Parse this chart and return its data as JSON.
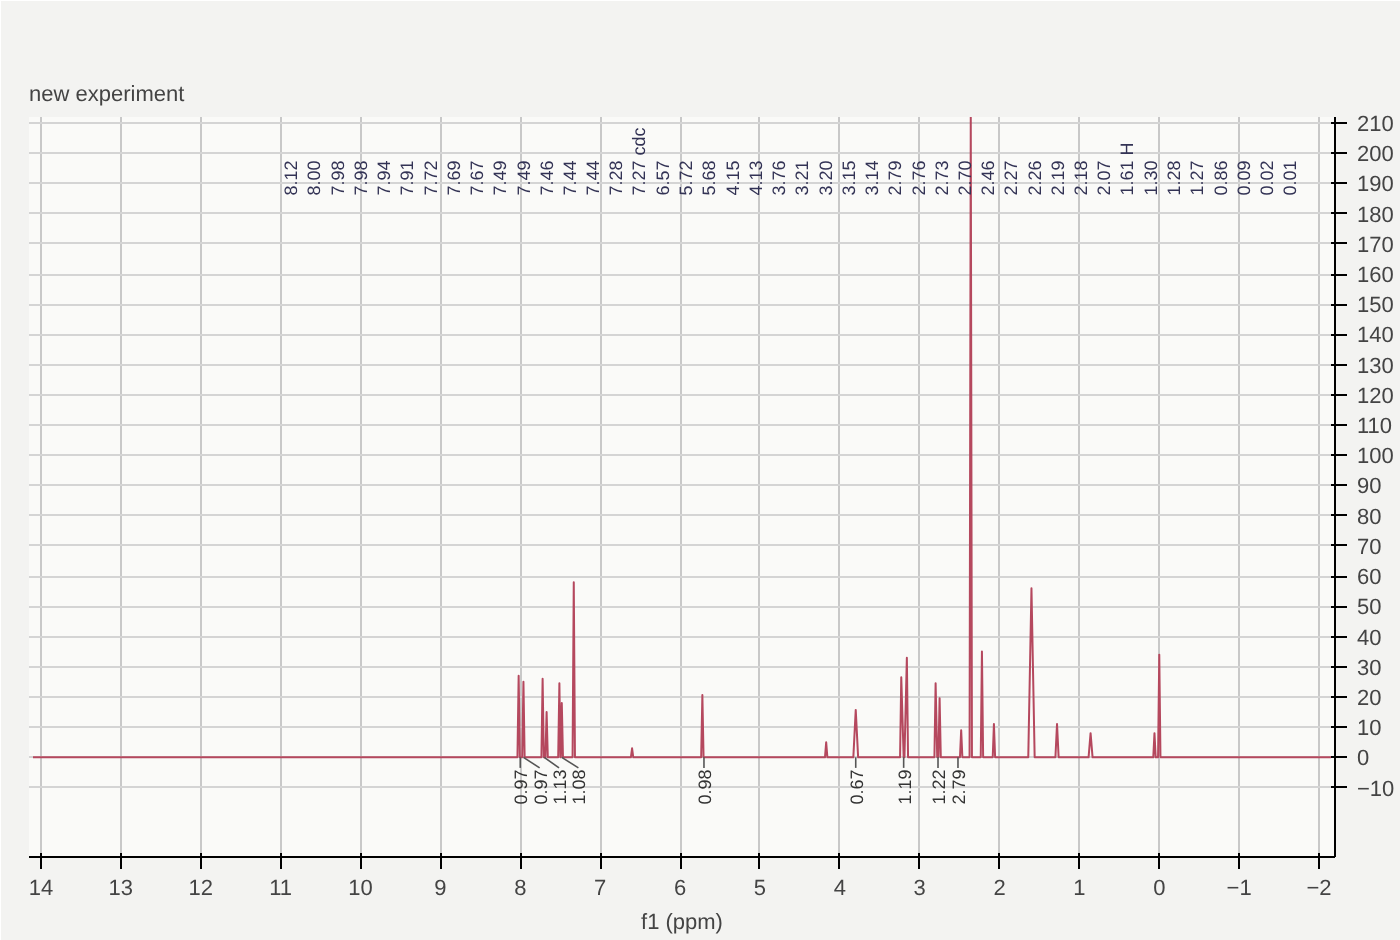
{
  "chart_data": {
    "type": "line",
    "title": "new experiment",
    "xlabel": "f1 (ppm)",
    "xlim": [
      14.15,
      -2.2
    ],
    "xticks": [
      14,
      13,
      12,
      11,
      10,
      9,
      8,
      7,
      6,
      5,
      4,
      3,
      2,
      1,
      0,
      -1,
      -2
    ],
    "ylim": [
      -33,
      212
    ],
    "yticks": [
      -10,
      0,
      10,
      20,
      30,
      40,
      50,
      60,
      70,
      80,
      90,
      100,
      110,
      120,
      130,
      140,
      150,
      160,
      170,
      180,
      190,
      200,
      210
    ],
    "grid": true,
    "marker": "none",
    "line_style": "solid",
    "series": [
      {
        "color": "#b5485e",
        "x": [
          14.1,
          8.035,
          8.02,
          8.005,
          7.975,
          7.96,
          7.945,
          7.735,
          7.72,
          7.705,
          7.685,
          7.67,
          7.655,
          7.525,
          7.51,
          7.497,
          7.492,
          7.48,
          7.465,
          7.345,
          7.33,
          7.315,
          6.615,
          6.6,
          6.585,
          5.735,
          5.72,
          5.705,
          4.185,
          4.17,
          4.155,
          3.83,
          3.8,
          3.77,
          3.245,
          3.23,
          3.2,
          3.19,
          3.16,
          3.145,
          2.815,
          2.8,
          2.78,
          2.765,
          2.75,
          2.735,
          2.495,
          2.48,
          2.465,
          2.375,
          2.36,
          2.345,
          2.235,
          2.22,
          2.205,
          2.085,
          2.07,
          2.055,
          1.64,
          1.6,
          1.56,
          1.3,
          1.28,
          1.26,
          0.885,
          0.86,
          0.835,
          0.075,
          0.06,
          0.045,
          0.015,
          0.0,
          -0.015,
          -2.15
        ],
        "values": [
          0,
          0,
          27,
          0,
          0,
          25,
          0,
          0,
          26,
          0,
          0,
          15,
          0,
          0,
          24.5,
          0,
          0,
          18,
          0,
          0,
          58,
          0,
          0,
          3,
          0,
          0,
          20.6,
          0,
          0,
          5,
          0,
          0,
          15.7,
          0,
          0,
          26.5,
          0,
          0,
          33,
          0,
          0,
          24.5,
          0,
          0,
          19.6,
          0,
          0,
          9,
          0,
          0,
          212,
          0,
          0,
          35,
          0,
          0,
          11,
          0,
          0,
          56,
          0,
          0,
          11,
          0,
          0,
          8,
          0,
          0,
          8,
          0,
          0,
          34,
          0,
          0
        ]
      }
    ],
    "annotations": [
      "8.12",
      "8.00",
      "7.98",
      "7.98",
      "7.94",
      "7.91",
      "7.72",
      "7.69",
      "7.67",
      "7.49",
      "7.49",
      "7.46",
      "7.44",
      "7.44",
      "7.28",
      "7.27 cdc",
      "6.57",
      "5.72",
      "5.68",
      "4.15",
      "4.13",
      "3.76",
      "3.21",
      "3.20",
      "3.15",
      "3.14",
      "2.79",
      "2.76",
      "2.73",
      "2.70",
      "2.46",
      "2.27",
      "2.26",
      "2.19",
      "2.18",
      "2.07",
      "1.61 H",
      "1.30",
      "1.28",
      "1.27",
      "0.86",
      "0.09",
      "0.02",
      "0.01",
      {
        "text": "0.97",
        "x": 8.0,
        "y": 0
      },
      {
        "text": "0.97",
        "x": 7.96,
        "y": 0
      },
      {
        "text": "1.13",
        "x": 7.7,
        "y": 0
      },
      {
        "text": "1.08",
        "x": 7.48,
        "y": 0
      },
      {
        "text": "0.98",
        "x": 5.7,
        "y": 0
      },
      {
        "text": "0.67",
        "x": 3.8,
        "y": 0
      },
      {
        "text": "1.19",
        "x": 3.2,
        "y": 0
      },
      {
        "text": "1.22",
        "x": 2.77,
        "y": 0
      },
      {
        "text": "2.79",
        "x": 2.52,
        "y": 0
      }
    ]
  }
}
